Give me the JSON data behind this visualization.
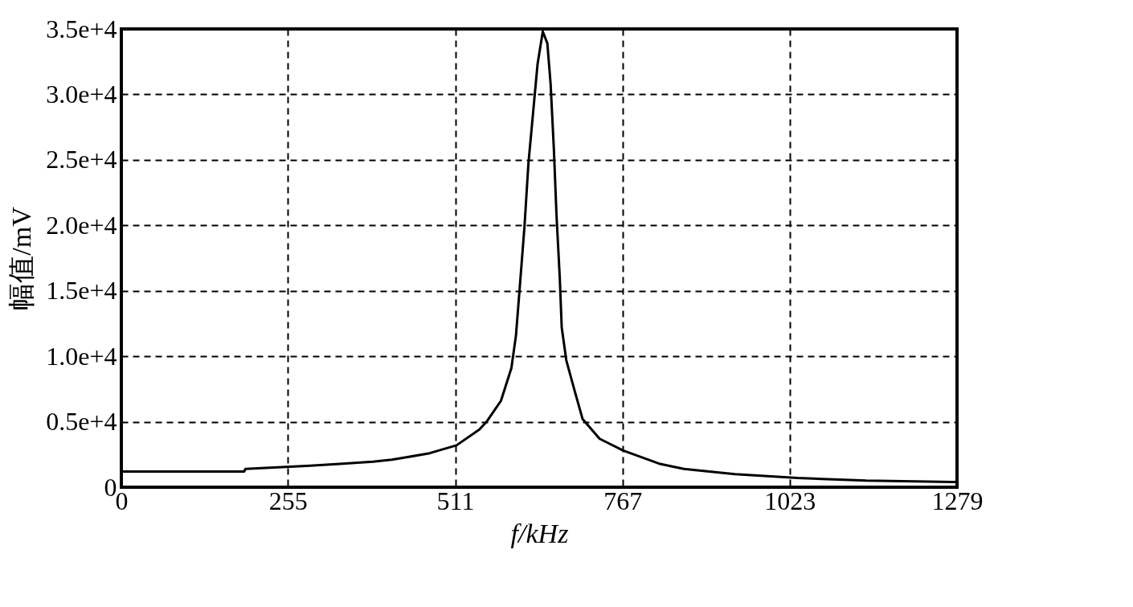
{
  "chart_data": {
    "type": "line",
    "xlabel": "f/kHz",
    "ylabel": "幅值/mV",
    "x": [
      0,
      188,
      190,
      289,
      339,
      385,
      414,
      438,
      472,
      513,
      548,
      559,
      581,
      597,
      604,
      610,
      617,
      623,
      630,
      637,
      645,
      652,
      657,
      662,
      666,
      671,
      674,
      681,
      693,
      706,
      732,
      768,
      823,
      861,
      939,
      1035,
      1140,
      1271,
      1279
    ],
    "series": [
      {
        "color": "#000000",
        "values": [
          1200,
          1200,
          1400,
          1650,
          1800,
          1950,
          2100,
          2300,
          2600,
          3200,
          4400,
          5000,
          6600,
          9100,
          11600,
          15400,
          19900,
          24700,
          28500,
          32300,
          34800,
          33900,
          30800,
          25800,
          20800,
          16000,
          12200,
          9700,
          7500,
          5200,
          3700,
          2800,
          1800,
          1400,
          1000,
          700,
          500,
          400,
          400
        ]
      }
    ],
    "xlim": [
      0,
      1279
    ],
    "xticks": [
      0,
      255,
      511,
      767,
      1023,
      1279
    ],
    "ylim": [
      0,
      35000
    ],
    "yticks": [
      {
        "value": 0,
        "label": "0"
      },
      {
        "value": 5000,
        "label": "0.5e+4"
      },
      {
        "value": 10000,
        "label": "1.0e+4"
      },
      {
        "value": 15000,
        "label": "1.5e+4"
      },
      {
        "value": 20000,
        "label": "2.0e+4"
      },
      {
        "value": 25000,
        "label": "2.5e+4"
      },
      {
        "value": 30000,
        "label": "3.0e+4"
      },
      {
        "value": 35000,
        "label": "3.5e+4"
      }
    ],
    "grid": true,
    "line_style": "solid",
    "marker": "none"
  }
}
